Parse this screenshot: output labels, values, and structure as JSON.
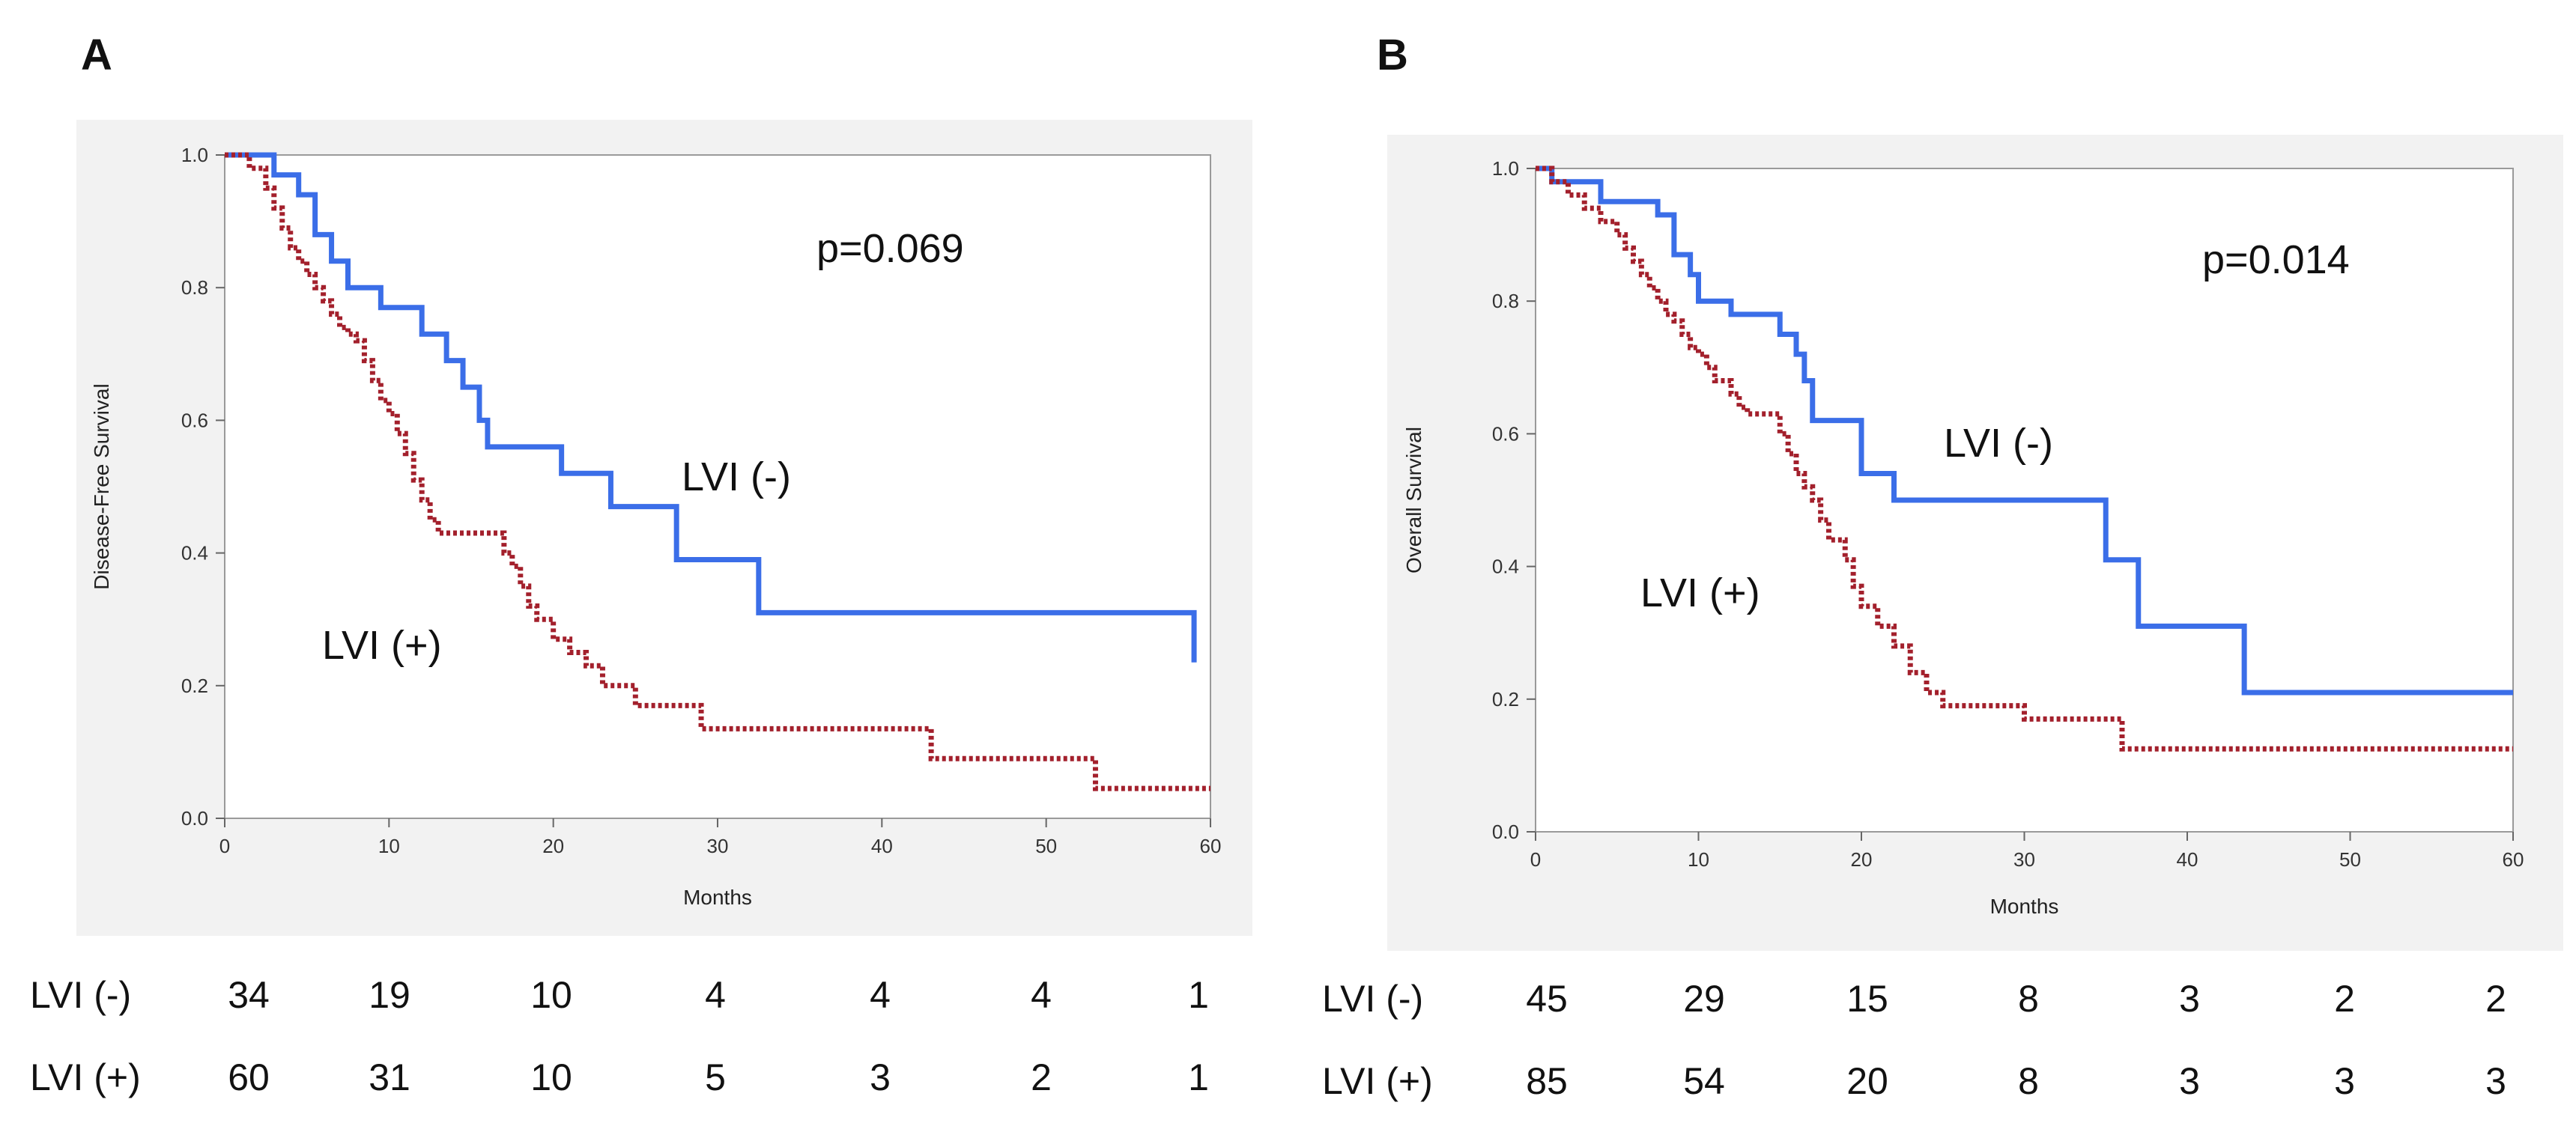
{
  "colors": {
    "lvi_neg": "#3b6ee8",
    "lvi_pos": "#a3202c",
    "panel_bg": "#f2f2f2"
  },
  "chart_data": [
    {
      "panel": "A",
      "type": "line",
      "ylabel": "Disease-Free Survival",
      "xlabel": "Months",
      "xlim": [
        0,
        60
      ],
      "ylim": [
        0.0,
        1.0
      ],
      "xticks": [
        "0",
        "10",
        "20",
        "30",
        "40",
        "50",
        "60"
      ],
      "yticks": [
        "0.0",
        "0.2",
        "0.4",
        "0.6",
        "0.8",
        "1.0"
      ],
      "annotation": "p=0.069",
      "series": [
        {
          "name": "LVI (-)",
          "style": "solid",
          "label": "LVI  (-)",
          "x": [
            0,
            3,
            4.5,
            5.5,
            6.5,
            7.5,
            9.5,
            12,
            13.5,
            14.5,
            15.5,
            16,
            20.5,
            23.5,
            27.5,
            32.5,
            59
          ],
          "y": [
            1.0,
            0.97,
            0.94,
            0.88,
            0.84,
            0.8,
            0.77,
            0.73,
            0.69,
            0.65,
            0.6,
            0.56,
            0.52,
            0.47,
            0.39,
            0.31,
            0.235
          ]
        },
        {
          "name": "LVI (+)",
          "style": "dotted",
          "label": "LVI  (+)",
          "x": [
            0,
            1.5,
            2.5,
            3,
            3.5,
            4,
            4.5,
            5,
            5.5,
            6,
            6.5,
            7,
            7.5,
            8,
            8.5,
            9,
            9.5,
            10,
            10.5,
            11,
            11.5,
            12,
            12.5,
            13,
            17,
            17.5,
            18,
            18.5,
            19,
            20,
            21,
            22,
            23,
            25,
            29,
            43,
            53,
            60
          ],
          "y": [
            1.0,
            0.98,
            0.95,
            0.92,
            0.89,
            0.86,
            0.84,
            0.82,
            0.8,
            0.78,
            0.76,
            0.74,
            0.73,
            0.72,
            0.69,
            0.66,
            0.63,
            0.61,
            0.58,
            0.55,
            0.51,
            0.48,
            0.45,
            0.43,
            0.4,
            0.38,
            0.35,
            0.32,
            0.3,
            0.27,
            0.25,
            0.23,
            0.2,
            0.17,
            0.135,
            0.09,
            0.045,
            0.045
          ]
        }
      ],
      "risk_table": {
        "rows": [
          {
            "label": "LVI (-)",
            "values": [
              "34",
              "19",
              "10",
              "4",
              "4",
              "4",
              "1"
            ]
          },
          {
            "label": "LVI (+)",
            "values": [
              "60",
              "31",
              "10",
              "5",
              "3",
              "2",
              "1"
            ]
          }
        ]
      }
    },
    {
      "panel": "B",
      "type": "line",
      "ylabel": "Overall Survival",
      "xlabel": "Months",
      "xlim": [
        0,
        60
      ],
      "ylim": [
        0.0,
        1.0
      ],
      "xticks": [
        "0",
        "10",
        "20",
        "30",
        "40",
        "50",
        "60"
      ],
      "yticks": [
        "0.0",
        "0.2",
        "0.4",
        "0.6",
        "0.8",
        "1.0"
      ],
      "annotation": "p=0.014",
      "series": [
        {
          "name": "LVI (-)",
          "style": "solid",
          "label": "LVI  (-)",
          "x": [
            0,
            1,
            4,
            7.5,
            8.5,
            9.5,
            10,
            12,
            15,
            16,
            16.5,
            17,
            20,
            22,
            35,
            37,
            43.5,
            60
          ],
          "y": [
            1.0,
            0.98,
            0.95,
            0.93,
            0.87,
            0.84,
            0.8,
            0.78,
            0.75,
            0.72,
            0.68,
            0.62,
            0.54,
            0.5,
            0.41,
            0.31,
            0.21,
            0.21
          ]
        },
        {
          "name": "LVI (+)",
          "style": "dotted",
          "label": "LVI  (+)",
          "x": [
            0,
            1,
            2,
            3,
            4,
            5,
            5.5,
            6,
            6.5,
            7,
            7.5,
            8,
            8.5,
            9,
            9.5,
            10,
            10.5,
            11,
            12,
            12.5,
            13,
            15,
            15.5,
            16,
            16.5,
            17,
            17.5,
            18,
            19,
            19.5,
            20,
            21,
            22,
            23,
            24,
            25,
            30,
            36,
            60
          ],
          "y": [
            1.0,
            0.98,
            0.96,
            0.94,
            0.92,
            0.9,
            0.88,
            0.86,
            0.84,
            0.82,
            0.8,
            0.78,
            0.77,
            0.75,
            0.73,
            0.72,
            0.7,
            0.68,
            0.66,
            0.64,
            0.63,
            0.6,
            0.57,
            0.54,
            0.52,
            0.5,
            0.47,
            0.44,
            0.41,
            0.37,
            0.34,
            0.31,
            0.28,
            0.24,
            0.21,
            0.19,
            0.17,
            0.125,
            0.125
          ]
        }
      ],
      "risk_table": {
        "rows": [
          {
            "label": "LVI (-)",
            "values": [
              "45",
              "29",
              "15",
              "8",
              "3",
              "2",
              "2"
            ]
          },
          {
            "label": "LVI (+)",
            "values": [
              "85",
              "54",
              "20",
              "8",
              "3",
              "3",
              "3"
            ]
          }
        ]
      }
    }
  ]
}
